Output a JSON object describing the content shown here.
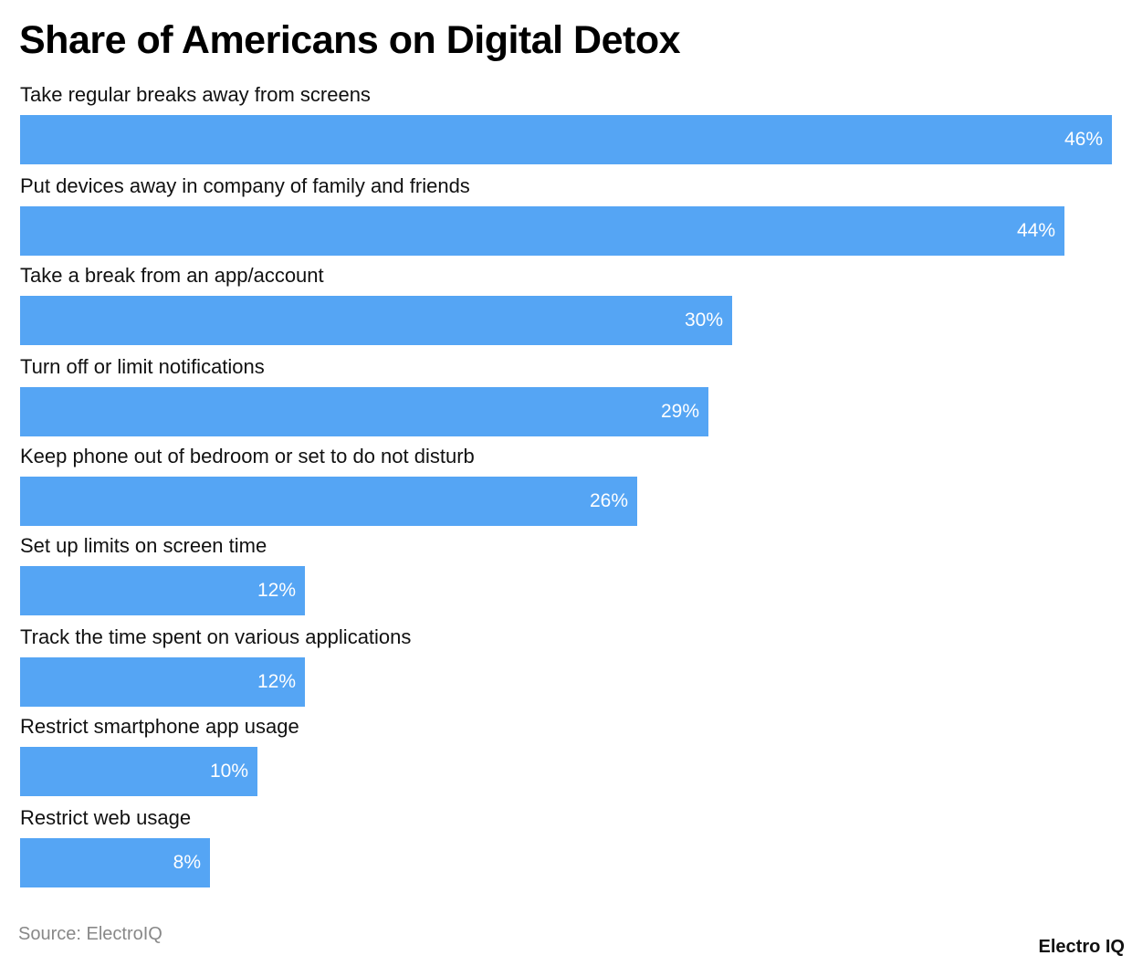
{
  "chart_data": {
    "type": "bar",
    "orientation": "horizontal",
    "title": "Share of Americans on Digital Detox",
    "categories": [
      "Take regular breaks away from screens",
      "Put devices away in company of family and friends",
      "Take a break from an app/account",
      "Turn off or limit notifications",
      "Keep phone out of bedroom or set to do not disturb",
      "Set up limits on screen time",
      "Track the time spent on various applications",
      "Restrict smartphone app usage",
      "Restrict web usage"
    ],
    "values": [
      46,
      44,
      30,
      29,
      26,
      12,
      12,
      10,
      8
    ],
    "value_labels": [
      "46%",
      "44%",
      "30%",
      "29%",
      "26%",
      "12%",
      "12%",
      "10%",
      "8%"
    ],
    "unit": "%",
    "bar_color": "#55a5f4",
    "grid": false
  },
  "source": "Source: ElectroIQ",
  "logo": "Electro IQ"
}
